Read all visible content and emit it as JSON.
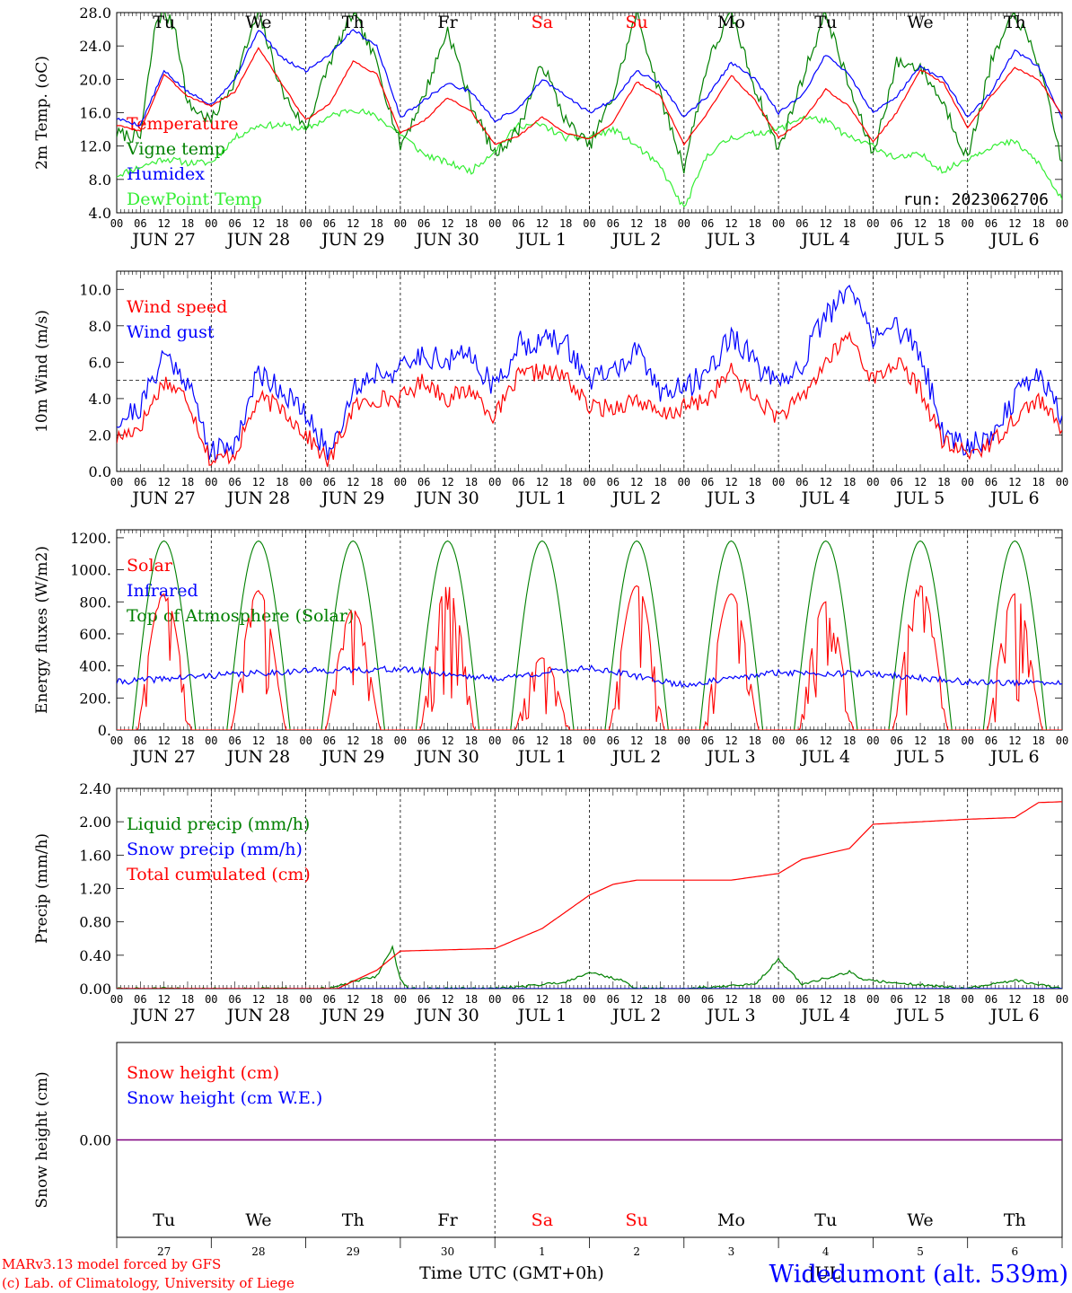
{
  "run_label": "run: 2023062706",
  "footer": {
    "model": "MARv3.13 model forced by GFS",
    "copyright": "(c) Lab. of Climatology, University of Liege",
    "xlabel": "Time UTC (GMT+0h)",
    "station": "Widedumont (alt. 539m)",
    "month_label": "JUL"
  },
  "colors": {
    "temperature": "#ff0000",
    "vigne": "#008000",
    "humidex": "#0000ff",
    "dewpoint": "#33ee33",
    "weekend": "#ff0000",
    "snow_line": "#800080"
  },
  "days": [
    {
      "dow": "Tu",
      "date": "JUN 27",
      "num": "27",
      "weekend": false
    },
    {
      "dow": "We",
      "date": "JUN 28",
      "num": "28",
      "weekend": false
    },
    {
      "dow": "Th",
      "date": "JUN 29",
      "num": "29",
      "weekend": false
    },
    {
      "dow": "Fr",
      "date": "JUN 30",
      "num": "30",
      "weekend": false
    },
    {
      "dow": "Sa",
      "date": "JUL  1",
      "num": "1",
      "weekend": true
    },
    {
      "dow": "Su",
      "date": "JUL  2",
      "num": "2",
      "weekend": true
    },
    {
      "dow": "Mo",
      "date": "JUL  3",
      "num": "3",
      "weekend": false
    },
    {
      "dow": "Tu",
      "date": "JUL  4",
      "num": "4",
      "weekend": false
    },
    {
      "dow": "We",
      "date": "JUL  5",
      "num": "5",
      "weekend": false
    },
    {
      "dow": "Th",
      "date": "JUL  6",
      "num": "6",
      "weekend": false
    }
  ],
  "hour_ticks": [
    "00",
    "06",
    "12",
    "18"
  ],
  "final_hour_tick": "00",
  "chart_data": [
    {
      "type": "line",
      "ylabel": "2m Temp. (oC)",
      "ylim": [
        4,
        28
      ],
      "yticks": [
        "4.0",
        "8.0",
        "12.0",
        "16.0",
        "20.0",
        "24.0",
        "28.0"
      ],
      "x_unit": "hours since 2023-06-27 00 UTC",
      "series": [
        {
          "name": "Temperature",
          "color": "#ff0000",
          "x": [
            0,
            6,
            12,
            18,
            24,
            30,
            36,
            42,
            48,
            54,
            60,
            66,
            72,
            78,
            84,
            90,
            96,
            102,
            108,
            114,
            120,
            126,
            132,
            138,
            144,
            150,
            156,
            162,
            168,
            174,
            180,
            186,
            192,
            198,
            204,
            210,
            216,
            222,
            228,
            234,
            240
          ],
          "values": [
            14.5,
            13.8,
            20.6,
            18.0,
            16.8,
            18.5,
            23.8,
            19.4,
            15.1,
            17.0,
            22.2,
            20.6,
            13.6,
            15.0,
            17.8,
            16.1,
            12.2,
            13.2,
            15.5,
            13.5,
            12.9,
            14.8,
            19.7,
            18.0,
            12.2,
            16.0,
            20.5,
            17.5,
            13.0,
            15.0,
            18.8,
            16.7,
            12.5,
            16.0,
            21.2,
            19.5,
            14.2,
            18.0,
            21.4,
            20.0,
            15.8
          ]
        },
        {
          "name": "Vigne temp",
          "color": "#008000",
          "x": [
            0,
            6,
            10,
            12,
            15,
            18,
            24,
            30,
            36,
            42,
            48,
            54,
            60,
            66,
            72,
            78,
            84,
            90,
            96,
            102,
            108,
            114,
            120,
            126,
            132,
            138,
            144,
            150,
            156,
            162,
            168,
            174,
            180,
            186,
            192,
            198,
            204,
            210,
            216,
            222,
            228,
            234,
            240
          ],
          "values": [
            13.5,
            13.0,
            27.0,
            28.0,
            26.0,
            17.0,
            15.0,
            20.0,
            28.0,
            18.5,
            14.0,
            22.0,
            28.0,
            22.0,
            12.0,
            18.0,
            26.0,
            17.0,
            11.0,
            14.0,
            22.0,
            15.0,
            12.0,
            18.0,
            28.0,
            18.0,
            9.5,
            22.0,
            28.0,
            19.0,
            11.5,
            20.0,
            28.0,
            19.0,
            11.0,
            22.0,
            21.5,
            17.0,
            10.5,
            22.0,
            28.0,
            22.0,
            10.0
          ]
        },
        {
          "name": "Humidex",
          "color": "#0000ff",
          "x": [
            0,
            6,
            12,
            18,
            24,
            30,
            36,
            42,
            48,
            54,
            60,
            66,
            72,
            78,
            84,
            90,
            96,
            102,
            108,
            114,
            120,
            126,
            132,
            138,
            144,
            150,
            156,
            162,
            168,
            174,
            180,
            186,
            192,
            198,
            204,
            210,
            216,
            222,
            228,
            234,
            240
          ],
          "values": [
            15.3,
            14.5,
            21.0,
            18.5,
            17.0,
            20.0,
            26.0,
            22.5,
            21.0,
            23.0,
            26.0,
            24.0,
            15.5,
            17.5,
            19.5,
            18.5,
            15.0,
            16.5,
            20.0,
            18.0,
            16.0,
            17.5,
            21.0,
            19.5,
            15.5,
            18.0,
            22.0,
            20.0,
            16.0,
            18.0,
            23.0,
            20.5,
            16.0,
            18.0,
            21.5,
            20.0,
            15.5,
            18.5,
            23.5,
            21.5,
            15.2
          ]
        },
        {
          "name": "DewPoint Temp",
          "color": "#33ee33",
          "x": [
            0,
            6,
            12,
            18,
            24,
            30,
            36,
            42,
            48,
            54,
            60,
            66,
            72,
            78,
            84,
            90,
            96,
            102,
            108,
            114,
            120,
            126,
            132,
            138,
            144,
            150,
            156,
            162,
            168,
            174,
            180,
            186,
            192,
            198,
            204,
            210,
            216,
            222,
            228,
            234,
            240
          ],
          "values": [
            8.5,
            9.5,
            10.5,
            10.0,
            10.0,
            13.0,
            14.5,
            14.5,
            14.0,
            15.5,
            16.5,
            15.5,
            13.5,
            11.0,
            10.0,
            9.0,
            11.5,
            14.5,
            14.5,
            13.0,
            13.0,
            14.0,
            12.0,
            9.5,
            4.5,
            11.0,
            13.0,
            13.5,
            14.0,
            15.5,
            15.0,
            13.0,
            12.0,
            10.5,
            11.0,
            9.0,
            10.5,
            12.0,
            12.5,
            10.0,
            5.5
          ]
        }
      ]
    },
    {
      "type": "line",
      "ylabel": "10m Wind (m/s)",
      "ylim": [
        0,
        11
      ],
      "yticks": [
        "0.0",
        "2.0",
        "4.0",
        "6.0",
        "8.0",
        "10.0"
      ],
      "reference_line": 5,
      "x_unit": "hours since 2023-06-27 00 UTC",
      "series": [
        {
          "name": "Wind speed",
          "color": "#ff0000",
          "x": [
            0,
            6,
            12,
            18,
            24,
            30,
            36,
            42,
            48,
            54,
            60,
            66,
            72,
            78,
            84,
            90,
            96,
            102,
            108,
            114,
            120,
            126,
            132,
            138,
            144,
            150,
            156,
            162,
            168,
            174,
            180,
            186,
            192,
            198,
            204,
            210,
            216,
            222,
            228,
            234,
            240
          ],
          "values": [
            1.8,
            2.5,
            5.0,
            4.0,
            0.5,
            1.0,
            4.0,
            3.5,
            2.0,
            0.5,
            3.5,
            4.0,
            4.0,
            5.0,
            4.0,
            4.5,
            3.0,
            5.2,
            5.5,
            5.2,
            3.5,
            3.5,
            4.0,
            3.0,
            3.5,
            4.0,
            5.5,
            4.0,
            3.0,
            4.0,
            6.0,
            7.5,
            5.0,
            6.0,
            4.5,
            1.5,
            1.0,
            1.5,
            3.0,
            4.0,
            2.2
          ]
        },
        {
          "name": "Wind gust",
          "color": "#0000ff",
          "x": [
            0,
            6,
            12,
            18,
            24,
            30,
            36,
            42,
            48,
            54,
            60,
            66,
            72,
            78,
            84,
            90,
            96,
            102,
            108,
            114,
            120,
            126,
            132,
            138,
            144,
            150,
            156,
            162,
            168,
            174,
            180,
            186,
            192,
            198,
            204,
            210,
            216,
            222,
            228,
            234,
            240
          ],
          "values": [
            2.8,
            3.5,
            6.5,
            5.0,
            1.0,
            1.5,
            5.5,
            4.5,
            3.0,
            1.0,
            4.5,
            5.5,
            5.5,
            6.5,
            6.0,
            6.5,
            4.5,
            7.0,
            7.2,
            7.0,
            5.0,
            5.5,
            6.5,
            4.5,
            4.5,
            5.5,
            7.5,
            6.0,
            4.5,
            6.0,
            8.5,
            10.0,
            7.5,
            8.0,
            6.5,
            2.0,
            1.5,
            2.0,
            4.0,
            5.5,
            3.0
          ]
        }
      ]
    },
    {
      "type": "line",
      "ylabel": "Energy fluxes (W/m2)",
      "ylim": [
        0,
        1250
      ],
      "yticks": [
        "0.",
        "200.",
        "400.",
        "600.",
        "800.",
        "1000.",
        "1200."
      ],
      "x_unit": "hours since 2023-06-27 00 UTC",
      "series": [
        {
          "name": "Solar",
          "color": "#ff0000",
          "daily_peak": [
            850,
            870,
            750,
            900,
            450,
            900,
            850,
            800,
            900,
            850
          ]
        },
        {
          "name": "Infrared",
          "color": "#0000ff",
          "x": [
            0,
            24,
            48,
            72,
            96,
            120,
            144,
            168,
            192,
            216,
            240
          ],
          "values": [
            300,
            340,
            370,
            380,
            320,
            390,
            280,
            360,
            350,
            300,
            290
          ]
        },
        {
          "name": "Top of Atmosphere (Solar)",
          "color": "#008000",
          "daily_peak": [
            1180,
            1180,
            1180,
            1180,
            1180,
            1180,
            1180,
            1180,
            1180,
            1180
          ]
        }
      ]
    },
    {
      "type": "line",
      "ylabel": "Precip (mm/h)",
      "ylim": [
        0,
        2.4
      ],
      "yticks": [
        "0.00",
        "0.40",
        "0.80",
        "1.20",
        "1.60",
        "2.00",
        "2.40"
      ],
      "x_unit": "hours since 2023-06-27 00 UTC",
      "series": [
        {
          "name": "Liquid precip (mm/h)",
          "color": "#008000",
          "x": [
            0,
            54,
            60,
            66,
            70,
            72,
            74,
            96,
            108,
            114,
            120,
            128,
            132,
            144,
            162,
            168,
            174,
            186,
            190,
            216,
            228,
            234,
            240
          ],
          "values": [
            0,
            0,
            0.08,
            0.15,
            0.5,
            0.1,
            0,
            0,
            0.05,
            0.08,
            0.2,
            0.1,
            0,
            0,
            0.05,
            0.35,
            0.05,
            0.2,
            0.1,
            0,
            0.1,
            0.05,
            0
          ]
        },
        {
          "name": "Snow precip (mm/h)",
          "color": "#0000ff",
          "x": [
            0,
            240
          ],
          "values": [
            0,
            0
          ]
        },
        {
          "name": "Total cumulated (cm)",
          "color": "#ff0000",
          "x": [
            0,
            56,
            66,
            72,
            96,
            108,
            114,
            120,
            126,
            132,
            156,
            168,
            174,
            186,
            192,
            216,
            228,
            234,
            240
          ],
          "values": [
            0,
            0,
            0.22,
            0.45,
            0.48,
            0.72,
            0.92,
            1.12,
            1.25,
            1.3,
            1.3,
            1.38,
            1.55,
            1.68,
            1.97,
            2.03,
            2.05,
            2.23,
            2.24
          ]
        }
      ]
    },
    {
      "type": "line",
      "ylabel": "Snow height (cm)",
      "ylim": [
        -1,
        1
      ],
      "yticks": [
        "0.00"
      ],
      "x_unit": "hours since 2023-06-27 00 UTC",
      "series": [
        {
          "name": "Snow height (cm)",
          "color": "#ff0000",
          "x": [
            0,
            240
          ],
          "values": [
            0,
            0
          ]
        },
        {
          "name": "Snow height (cm W.E.)",
          "color": "#0000ff",
          "x": [
            0,
            240
          ],
          "values": [
            0,
            0
          ]
        }
      ]
    }
  ]
}
